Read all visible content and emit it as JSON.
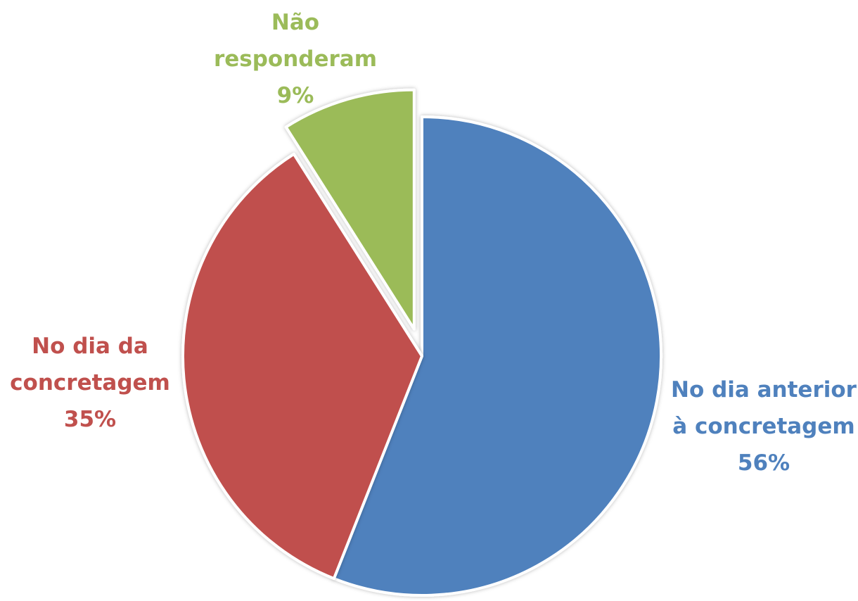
{
  "chart_data": {
    "type": "pie",
    "slices": [
      {
        "category": "No dia anterior à concretagem",
        "label_lines": [
          "No dia anterior",
          "à concretagem"
        ],
        "value": 56,
        "value_label": "56%",
        "color": "#4f81bd",
        "exploded": false
      },
      {
        "category": "No dia da concretagem",
        "label_lines": [
          "No dia da",
          "concretagem"
        ],
        "value": 35,
        "value_label": "35%",
        "color": "#c0504d",
        "exploded": false
      },
      {
        "category": "Não responderam",
        "label_lines": [
          "Não",
          "responderam"
        ],
        "value": 9,
        "value_label": "9%",
        "color": "#9bbb59",
        "exploded": true
      }
    ],
    "start_angle_deg": 0,
    "direction": "clockwise",
    "legend": "none",
    "data_labels": "category and percentage, outside"
  }
}
